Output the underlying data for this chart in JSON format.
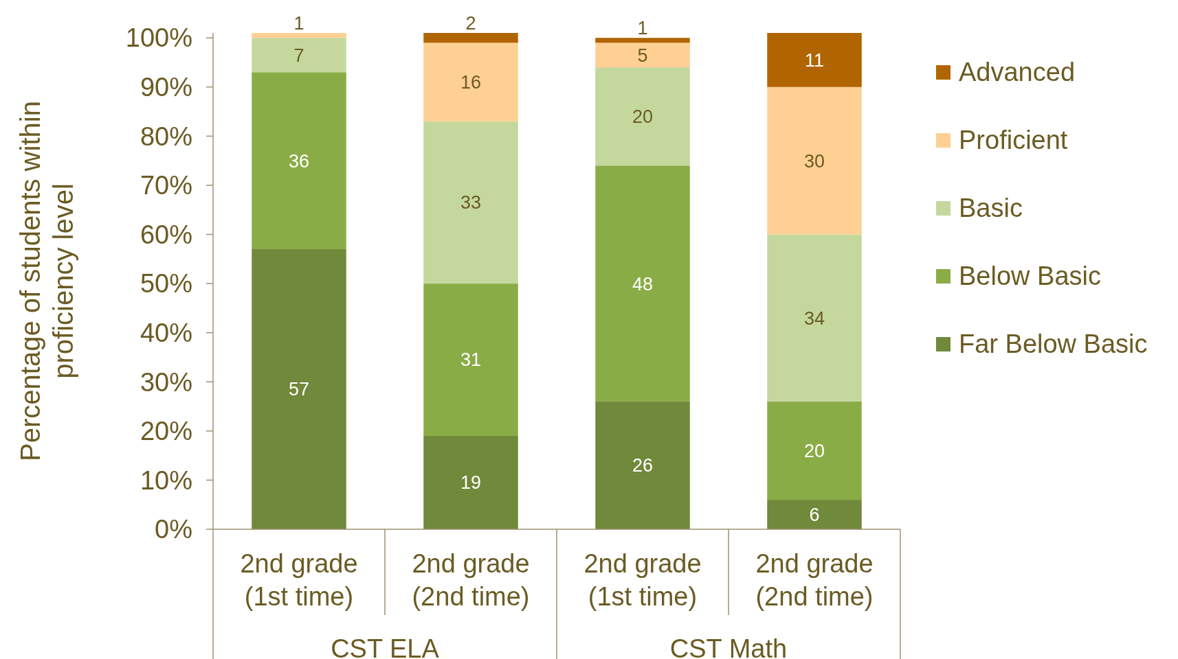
{
  "chart_data": {
    "type": "bar",
    "stacked": true,
    "ylabel": "Percentage of students within proficiency level",
    "categories": [
      "2nd grade (1st time)",
      "2nd grade (2nd time)",
      "2nd grade (1st time)",
      "2nd grade (2nd time)"
    ],
    "series": [
      {
        "name": "Far Below Basic",
        "color": "#70893a",
        "values": [
          57,
          19,
          26,
          6
        ]
      },
      {
        "name": "Below Basic",
        "color": "#8aac46",
        "values": [
          36,
          31,
          48,
          20
        ]
      },
      {
        "name": "Basic",
        "color": "#c4d89e",
        "values": [
          7,
          33,
          20,
          34
        ]
      },
      {
        "name": "Proficient",
        "color": "#ffd093",
        "values": [
          1,
          16,
          5,
          30
        ]
      },
      {
        "name": "Advanced",
        "color": "#b06500",
        "values": [
          null,
          2,
          1,
          11
        ]
      }
    ],
    "ylim": [
      0,
      101
    ],
    "yticks": [
      {
        "value": 0,
        "label": "0%"
      },
      {
        "value": 10,
        "label": "10%"
      },
      {
        "value": 20,
        "label": "20%"
      },
      {
        "value": 30,
        "label": "30%"
      },
      {
        "value": 40,
        "label": "40%"
      },
      {
        "value": 50,
        "label": "50%"
      },
      {
        "value": 60,
        "label": "60%"
      },
      {
        "value": 70,
        "label": "70%"
      },
      {
        "value": 80,
        "label": "80%"
      },
      {
        "value": 90,
        "label": "90%"
      },
      {
        "value": 100,
        "label": "100%"
      }
    ],
    "annotations": [
      "CST ELA",
      "CST Math"
    ],
    "data_labels": true,
    "legend": "right",
    "grid": false
  }
}
